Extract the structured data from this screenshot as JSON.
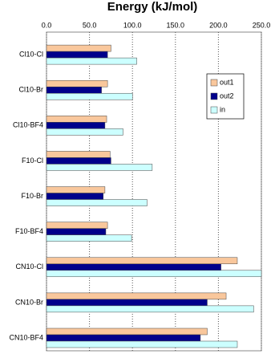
{
  "chart_data": {
    "type": "hbar",
    "title": "Energy (kJ/mol)",
    "categories": [
      "Cl10-Cl",
      "Cl10-Br",
      "Cl10-BF4",
      "F10-Cl",
      "F10-Br",
      "F10-BF4",
      "CN10-Cl",
      "CN10-Br",
      "CN10-BF4"
    ],
    "series": [
      {
        "name": "out1",
        "color": "#f9c79c",
        "values": [
          75,
          71,
          70,
          74,
          68,
          71,
          222,
          209,
          187
        ]
      },
      {
        "name": "out2",
        "color": "#00008b",
        "values": [
          71,
          64,
          68,
          75,
          66,
          69,
          203,
          187,
          179
        ]
      },
      {
        "name": "in",
        "color": "#ccffff",
        "values": [
          105,
          100,
          89,
          123,
          117,
          99,
          250,
          241,
          222
        ]
      }
    ],
    "xlim": [
      0,
      250
    ],
    "xticks": [
      {
        "value": 0,
        "label": "0.0"
      },
      {
        "value": 50,
        "label": "50.0"
      },
      {
        "value": 100,
        "label": "100.0"
      },
      {
        "value": 150,
        "label": "150.0"
      },
      {
        "value": 200,
        "label": "200.0"
      },
      {
        "value": 250,
        "label": "250.0"
      }
    ],
    "grid": true
  }
}
